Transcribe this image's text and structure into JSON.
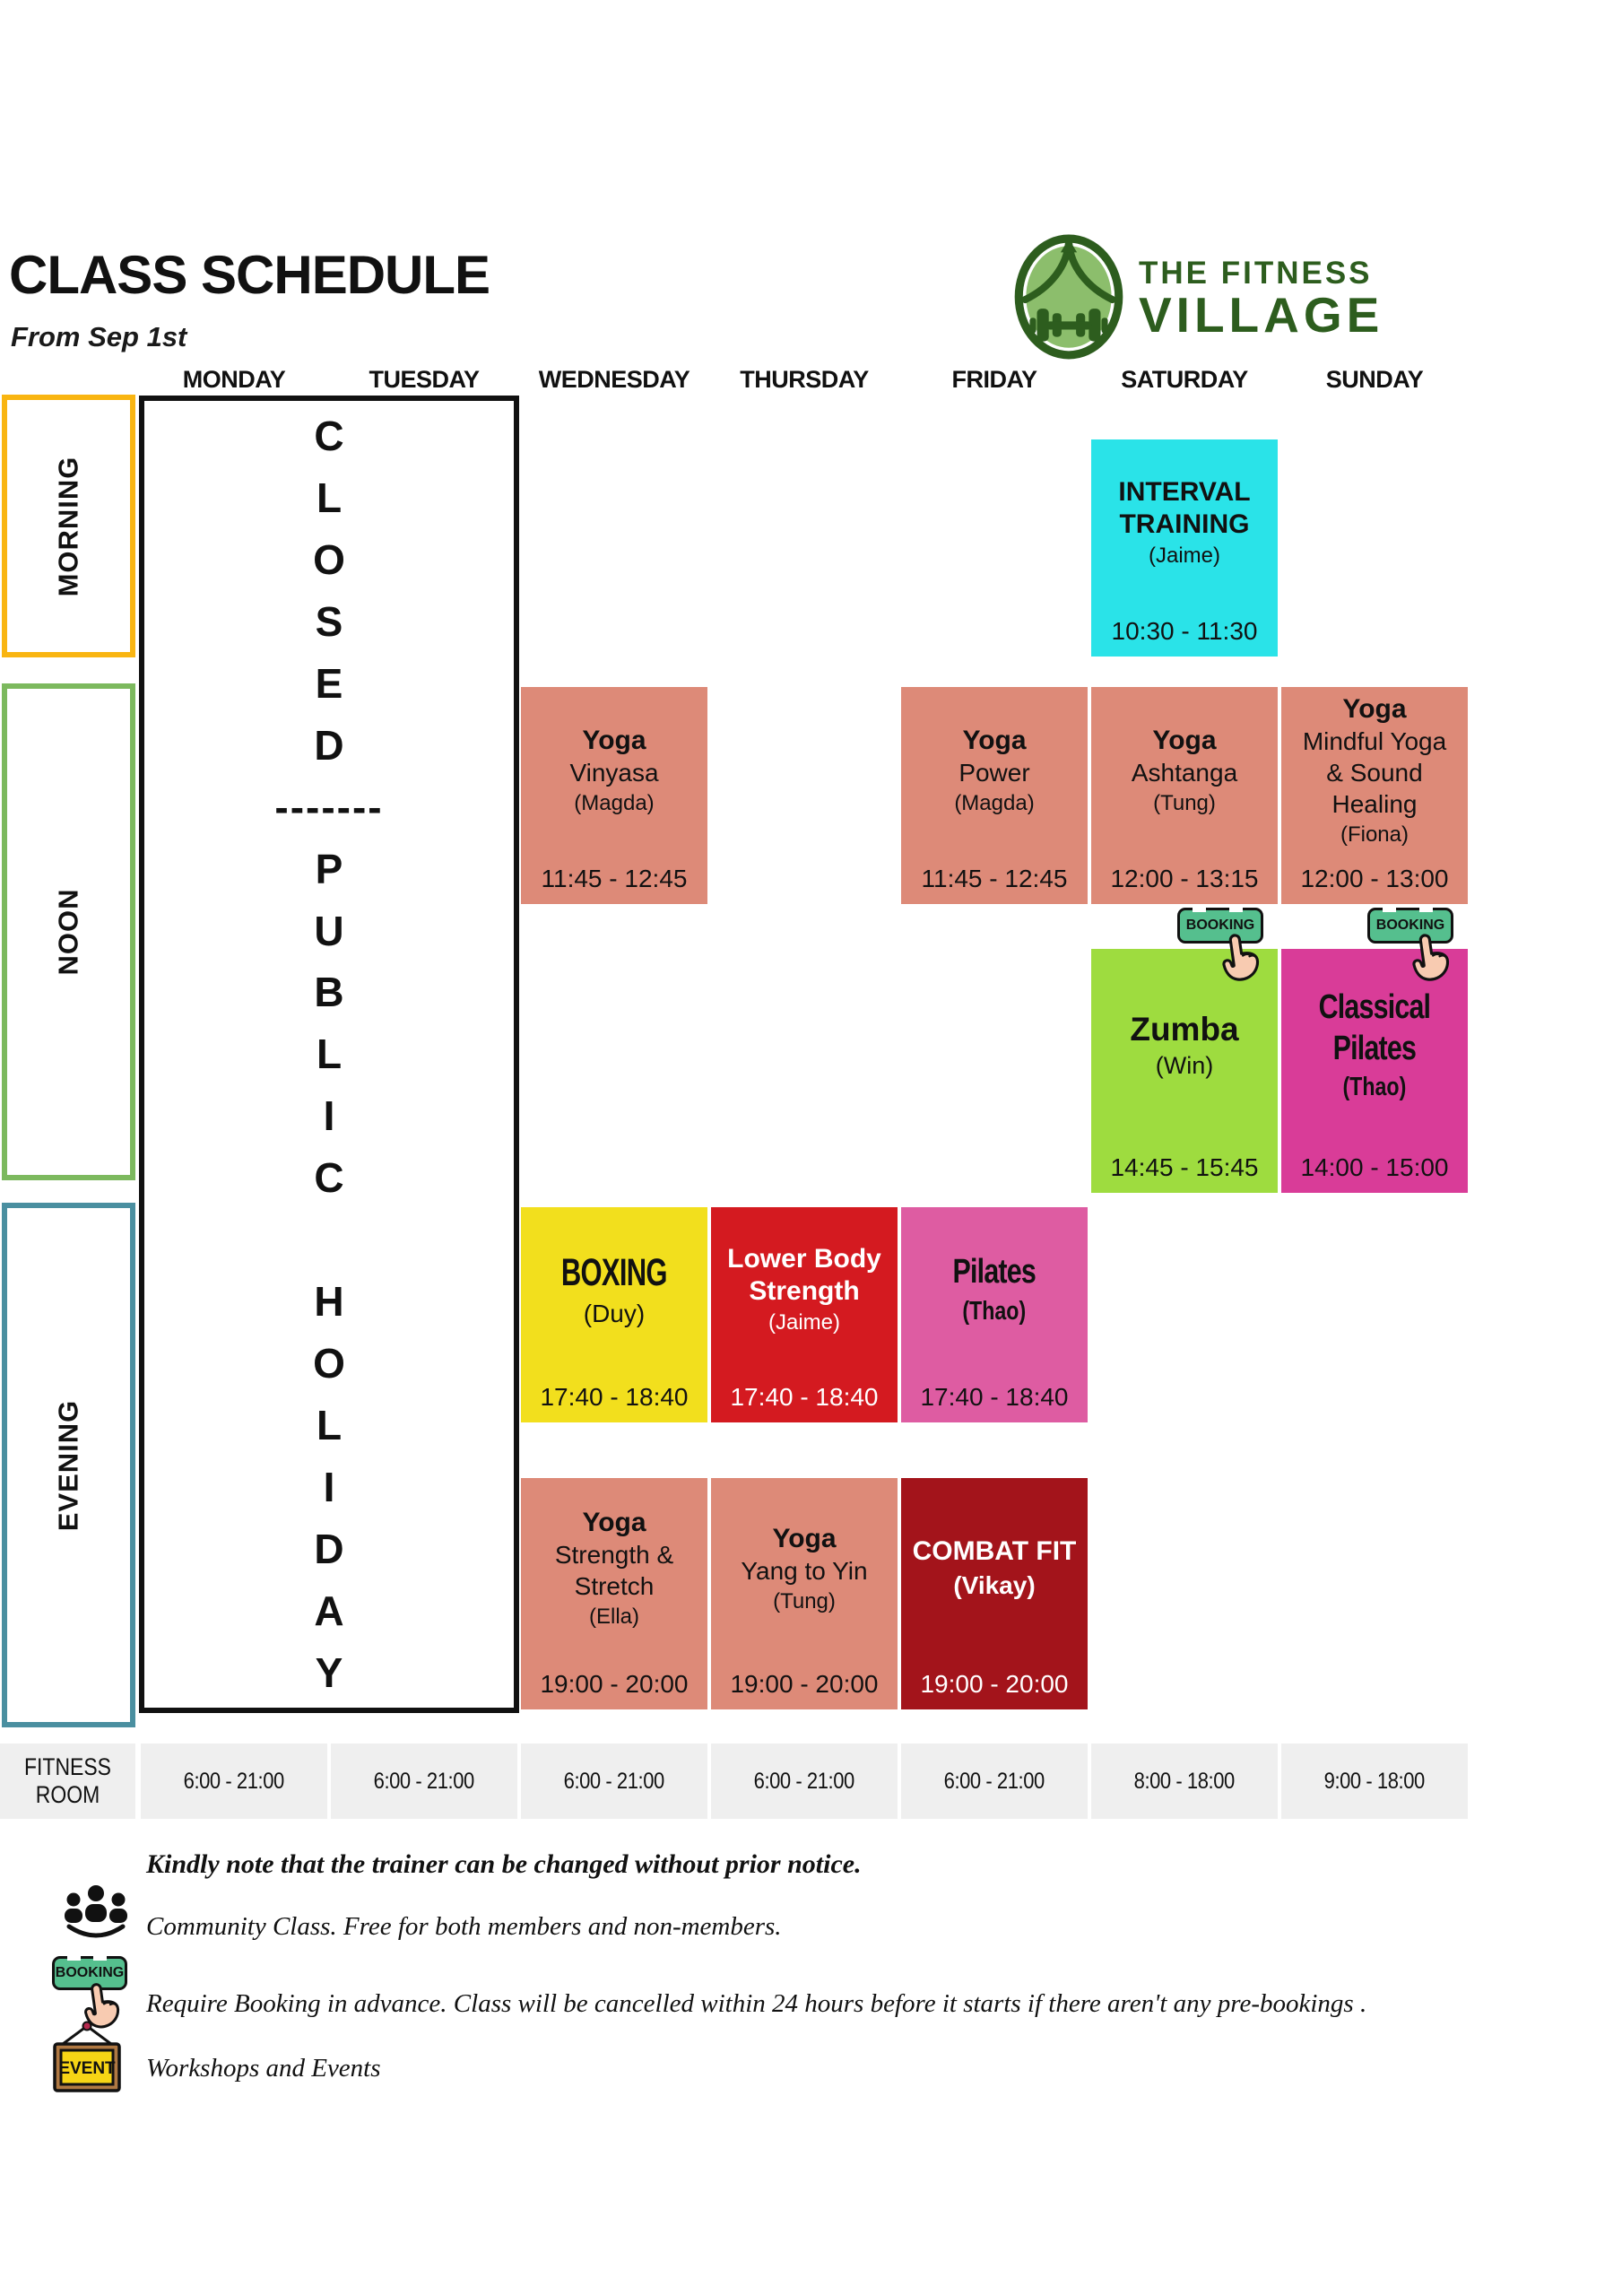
{
  "header": {
    "title": "CLASS SCHEDULE",
    "subtitle": "From Sep 1st"
  },
  "logo": {
    "line1": "THE FITNESS",
    "line2": "VILLAGE",
    "color": "#2d5d1e"
  },
  "days": [
    "MONDAY",
    "TUESDAY",
    "WEDNESDAY",
    "THURSDAY",
    "FRIDAY",
    "SATURDAY",
    "SUNDAY"
  ],
  "time_sections": [
    {
      "label": "MORNING",
      "color": "#f9b511"
    },
    {
      "label": "NOON",
      "color": "#7cb95e"
    },
    {
      "label": "EVENING",
      "color": "#4a8fa0"
    }
  ],
  "closed_block": {
    "top": "CLOSED",
    "divider": "-------",
    "middle": "PUBLIC",
    "bottom": "HOLIDAY"
  },
  "badge": {
    "label": "BOOKING"
  },
  "classes": [
    {
      "day": "SATURDAY",
      "slot": "morning",
      "name": "INTERVAL\nTRAINING",
      "subtitle": "",
      "trainer": "(Jaime)",
      "time": "10:30 - 11:30",
      "bg": "#2ae3e8",
      "mods": ""
    },
    {
      "day": "WEDNESDAY",
      "slot": "noon",
      "name": "Yoga",
      "subtitle": "Vinyasa",
      "trainer": "(Magda)",
      "time": "11:45 - 12:45",
      "bg": "#dd8a78",
      "mods": ""
    },
    {
      "day": "FRIDAY",
      "slot": "noon",
      "name": "Yoga",
      "subtitle": "Power",
      "trainer": "(Magda)",
      "time": "11:45 - 12:45",
      "bg": "#dd8a78",
      "mods": ""
    },
    {
      "day": "SATURDAY",
      "slot": "noon",
      "name": "Yoga",
      "subtitle": "Ashtanga",
      "trainer": "(Tung)",
      "time": "12:00 - 13:15",
      "bg": "#dd8a78",
      "mods": "",
      "booking": true
    },
    {
      "day": "SUNDAY",
      "slot": "noon",
      "name": "Yoga",
      "subtitle": "Mindful Yoga\n& Sound\nHealing",
      "trainer": "(Fiona)",
      "time": "12:00 - 13:00",
      "bg": "#dd8a78",
      "mods": "",
      "booking": true
    },
    {
      "day": "SATURDAY",
      "slot": "afternoon",
      "name": "Zumba",
      "subtitle": "",
      "trainer": "(Win)",
      "time": "14:45 - 15:45",
      "bg": "#9edc3f",
      "mods": "big"
    },
    {
      "day": "SUNDAY",
      "slot": "afternoon",
      "name": "Classical\nPilates",
      "subtitle": "",
      "trainer": "(Thao)",
      "time": "14:00 - 15:00",
      "bg": "#d93c98",
      "mods": "cond"
    },
    {
      "day": "WEDNESDAY",
      "slot": "evening1",
      "name": "BOXING",
      "subtitle": "",
      "trainer": "(Duy)",
      "time": "17:40 - 18:40",
      "bg": "#f2df1d",
      "mods": "boxing"
    },
    {
      "day": "THURSDAY",
      "slot": "evening1",
      "name": "Lower Body\nStrength",
      "subtitle": "",
      "trainer": "(Jaime)",
      "time": "17:40 - 18:40",
      "bg": "#d41a20",
      "mods": "light"
    },
    {
      "day": "FRIDAY",
      "slot": "evening1",
      "name": "Pilates",
      "subtitle": "",
      "trainer": "(Thao)",
      "time": "17:40 - 18:40",
      "bg": "#de5ca2",
      "mods": "cond"
    },
    {
      "day": "WEDNESDAY",
      "slot": "evening2",
      "name": "Yoga",
      "subtitle": "Strength &\nStretch",
      "trainer": "(Ella)",
      "time": "19:00 - 20:00",
      "bg": "#dd8a78",
      "mods": ""
    },
    {
      "day": "THURSDAY",
      "slot": "evening2",
      "name": "Yoga",
      "subtitle": "Yang to Yin",
      "trainer": "(Tung)",
      "time": "19:00 - 20:00",
      "bg": "#dd8a78",
      "mods": ""
    },
    {
      "day": "FRIDAY",
      "slot": "evening2",
      "name": "COMBAT FIT",
      "subtitle": "",
      "trainer": "(Vikay)",
      "time": "19:00 - 20:00",
      "bg": "#a3141b",
      "mods": "light tbold"
    }
  ],
  "fitness_room": {
    "label": "FITNESS ROOM",
    "hours": [
      "6:00 - 21:00",
      "6:00 - 21:00",
      "6:00 - 21:00",
      "6:00 - 21:00",
      "6:00 - 21:00",
      "8:00 - 18:00",
      "9:00 - 18:00"
    ]
  },
  "legend": {
    "note": "Kindly note that the trainer can be changed without prior notice.",
    "event_label": "EVENT",
    "items": [
      {
        "icon": "community-people-icon",
        "text": "Community Class. Free for both members and non-members."
      },
      {
        "icon": "booking-badge-icon",
        "text": "Require Booking in advance. Class will be cancelled within 24 hours before it starts if there aren't any pre-bookings ."
      },
      {
        "icon": "event-sign-icon",
        "text": "Workshops and Events"
      }
    ]
  },
  "colors": {
    "salmon": "#dd8a78",
    "cyan": "#2ae3e8",
    "zumba_green": "#9edc3f",
    "magenta": "#d93c98",
    "boxing_yellow": "#f2df1d",
    "strength_red": "#d41a20",
    "pilates_pink": "#de5ca2",
    "combat_dark_red": "#a3141b",
    "fitness_gray": "#efefef",
    "booking_green": "#55bf8e",
    "morning_border": "#f9b511",
    "noon_border": "#7cb95e",
    "evening_border": "#4a8fa0",
    "logo_green": "#2d5d1e"
  }
}
